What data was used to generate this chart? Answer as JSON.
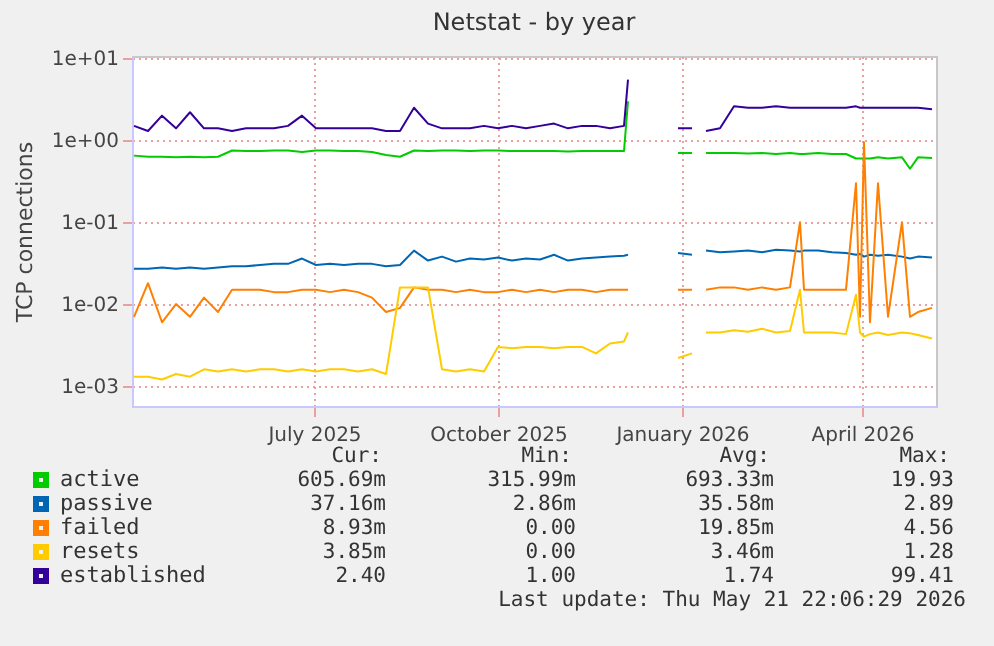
{
  "chart_data": {
    "type": "line",
    "title": "Netstat - by year",
    "ylabel": "TCP connections",
    "x": [
      "2025-04-17",
      "2025-04-24",
      "2025-05-01",
      "2025-05-08",
      "2025-05-15",
      "2025-05-22",
      "2025-05-29",
      "2025-06-05",
      "2025-06-12",
      "2025-06-19",
      "2025-06-26",
      "2025-07-03",
      "2025-07-10",
      "2025-07-17",
      "2025-07-24",
      "2025-07-31",
      "2025-08-07",
      "2025-08-14",
      "2025-08-21",
      "2025-08-28",
      "2025-09-04",
      "2025-09-11",
      "2025-09-18",
      "2025-09-25",
      "2025-10-02",
      "2025-10-09",
      "2025-10-16",
      "2025-10-23",
      "2025-10-30",
      "2025-11-06",
      "2025-11-13",
      "2025-11-20",
      "2025-11-27",
      "2025-12-04",
      "2025-12-11",
      "2025-12-18",
      "2025-12-20",
      "2026-01-01",
      "2026-01-14",
      "2026-01-21",
      "2026-01-25",
      "2026-01-28",
      "2026-02-04",
      "2026-02-11",
      "2026-02-18",
      "2026-02-25",
      "2026-03-04",
      "2026-03-11",
      "2026-03-16",
      "2026-03-18",
      "2026-03-25",
      "2026-04-01",
      "2026-04-08",
      "2026-04-13",
      "2026-04-15",
      "2026-04-17",
      "2026-04-20",
      "2026-04-24",
      "2026-04-29",
      "2026-05-06",
      "2026-05-10",
      "2026-05-14",
      "2026-05-21"
    ],
    "series": [
      {
        "name": "active",
        "color": "#00cc00",
        "values": [
          0.65,
          0.63,
          0.63,
          0.62,
          0.63,
          0.62,
          0.63,
          0.75,
          0.74,
          0.74,
          0.75,
          0.75,
          0.72,
          0.75,
          0.75,
          0.74,
          0.74,
          0.72,
          0.66,
          0.63,
          0.75,
          0.74,
          0.75,
          0.75,
          0.74,
          0.75,
          0.75,
          0.74,
          0.74,
          0.74,
          0.74,
          0.73,
          0.74,
          0.74,
          0.74,
          0.74,
          3.0,
          null,
          0.7,
          0.7,
          null,
          0.7,
          0.7,
          0.7,
          0.69,
          0.7,
          0.68,
          0.7,
          0.68,
          0.68,
          0.7,
          0.68,
          0.68,
          0.6,
          0.6,
          0.6,
          0.6,
          0.62,
          0.6,
          0.62,
          0.45,
          0.62,
          0.61
        ]
      },
      {
        "name": "passive",
        "color": "#0066b3",
        "values": [
          0.027,
          0.027,
          0.028,
          0.027,
          0.028,
          0.027,
          0.028,
          0.029,
          0.029,
          0.03,
          0.031,
          0.031,
          0.036,
          0.03,
          0.031,
          0.03,
          0.031,
          0.031,
          0.029,
          0.03,
          0.045,
          0.034,
          0.038,
          0.033,
          0.036,
          0.035,
          0.037,
          0.034,
          0.036,
          0.035,
          0.04,
          0.034,
          0.036,
          0.037,
          0.038,
          0.039,
          0.04,
          null,
          0.042,
          0.04,
          null,
          0.045,
          0.043,
          0.044,
          0.045,
          0.043,
          0.046,
          0.045,
          0.044,
          0.045,
          0.045,
          0.043,
          0.042,
          0.04,
          0.041,
          0.038,
          0.04,
          0.039,
          0.04,
          0.038,
          0.036,
          0.038,
          0.037
        ]
      },
      {
        "name": "failed",
        "color": "#ff8000",
        "values": [
          0.007,
          0.018,
          0.006,
          0.01,
          0.007,
          0.012,
          0.008,
          0.015,
          0.015,
          0.015,
          0.014,
          0.014,
          0.015,
          0.015,
          0.014,
          0.015,
          0.014,
          0.012,
          0.008,
          0.009,
          0.016,
          0.015,
          0.015,
          0.014,
          0.015,
          0.014,
          0.014,
          0.015,
          0.014,
          0.015,
          0.014,
          0.015,
          0.015,
          0.014,
          0.015,
          0.015,
          0.015,
          null,
          0.015,
          0.015,
          null,
          0.015,
          0.016,
          0.016,
          0.015,
          0.016,
          0.015,
          0.016,
          0.1,
          0.015,
          0.015,
          0.015,
          0.015,
          0.3,
          0.007,
          0.95,
          0.006,
          0.3,
          0.007,
          0.1,
          0.007,
          0.008,
          0.009
        ]
      },
      {
        "name": "resets",
        "color": "#ffcc00",
        "values": [
          0.0013,
          0.0013,
          0.0012,
          0.0014,
          0.0013,
          0.0016,
          0.0015,
          0.0016,
          0.0015,
          0.0016,
          0.0016,
          0.0015,
          0.0016,
          0.0015,
          0.0016,
          0.0016,
          0.0015,
          0.0016,
          0.0014,
          0.016,
          0.016,
          0.016,
          0.0016,
          0.0015,
          0.0016,
          0.0015,
          0.003,
          0.0029,
          0.003,
          0.003,
          0.0029,
          0.003,
          0.003,
          0.0025,
          0.0033,
          0.0035,
          0.0045,
          null,
          0.0022,
          0.0025,
          null,
          0.0045,
          0.0045,
          0.0048,
          0.0046,
          0.005,
          0.0045,
          0.0047,
          0.015,
          0.0045,
          0.0045,
          0.0045,
          0.0043,
          0.013,
          0.0045,
          0.004,
          0.0043,
          0.0045,
          0.0042,
          0.0045,
          0.0044,
          0.0042,
          0.0038
        ]
      },
      {
        "name": "established",
        "color": "#330099",
        "values": [
          1.5,
          1.3,
          2.0,
          1.4,
          2.2,
          1.4,
          1.4,
          1.3,
          1.4,
          1.4,
          1.4,
          1.5,
          2.0,
          1.4,
          1.4,
          1.4,
          1.4,
          1.4,
          1.3,
          1.3,
          2.5,
          1.6,
          1.4,
          1.4,
          1.4,
          1.5,
          1.4,
          1.5,
          1.4,
          1.5,
          1.6,
          1.4,
          1.5,
          1.5,
          1.4,
          1.5,
          5.5,
          null,
          1.4,
          1.4,
          null,
          1.3,
          1.4,
          2.6,
          2.5,
          2.5,
          2.6,
          2.5,
          2.5,
          2.5,
          2.5,
          2.5,
          2.5,
          2.6,
          2.5,
          2.5,
          2.5,
          2.5,
          2.5,
          2.5,
          2.5,
          2.5,
          2.4
        ]
      }
    ],
    "log": true,
    "ylim": [
      0.00057,
      10.7
    ],
    "yticks": [
      {
        "value": 10,
        "label": "1e+01"
      },
      {
        "value": 1,
        "label": "1e+00"
      },
      {
        "value": 0.1,
        "label": "1e-01"
      },
      {
        "value": 0.01,
        "label": "1e-02"
      },
      {
        "value": 0.001,
        "label": "1e-03"
      }
    ],
    "xlim": [
      "2025-04-16",
      "2026-05-23"
    ],
    "xticks": [
      {
        "value": "2025-07-16",
        "label": "July 2025"
      },
      {
        "value": "2025-10-16",
        "label": "October 2025"
      },
      {
        "value": "2026-01-16",
        "label": "January 2026"
      },
      {
        "value": "2026-04-16",
        "label": "April 2026"
      }
    ],
    "grid": true,
    "legend": "bottom left",
    "annotations": [
      "Cur:",
      "Min:",
      "Avg:",
      "Max:",
      "605.69m",
      "315.99m",
      "693.33m",
      "19.93",
      "37.16m",
      "2.86m",
      "35.58m",
      "2.89",
      "8.93m",
      "0.00",
      "19.85m",
      "4.56",
      "3.85m",
      "0.00",
      "3.46m",
      "1.28",
      "2.40",
      "1.00",
      "1.74",
      "99.41",
      "Last update: Thu May 21 22:06:29 2026"
    ]
  }
}
